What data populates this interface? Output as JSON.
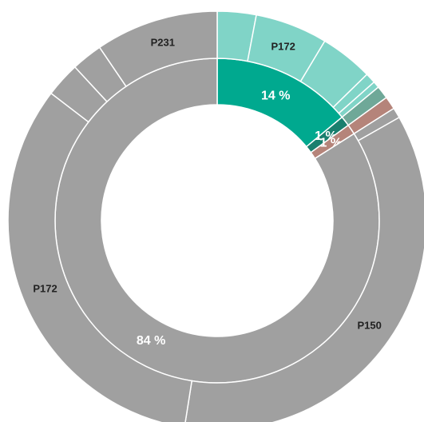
{
  "chart_data": {
    "type": "sunburst",
    "inner": {
      "values": [
        14,
        1,
        1,
        84
      ],
      "value_labels": [
        "14 %",
        "1 %",
        "1 %",
        "84 %"
      ],
      "colors": [
        "#00a98f",
        "#1a7f6e",
        "#b5847a",
        "#a0a0a0"
      ]
    },
    "outer": {
      "labels": [
        null,
        "P172",
        null,
        null,
        null,
        null,
        null,
        null,
        "P150",
        "P172",
        null,
        null,
        "P231"
      ],
      "values": [
        3,
        5.6,
        4.1,
        0.8,
        0.5,
        1,
        1,
        0.8,
        35.7,
        32.9,
        2.7,
        2.4,
        9.5
      ],
      "colors": [
        "#80d4c7",
        "#80d4c7",
        "#80d4c7",
        "#80d4c7",
        "#80d4c7",
        "#6fa898",
        "#b5847a",
        "#a0a0a0",
        "#a0a0a0",
        "#a0a0a0",
        "#a0a0a0",
        "#a0a0a0",
        "#a0a0a0"
      ]
    }
  }
}
